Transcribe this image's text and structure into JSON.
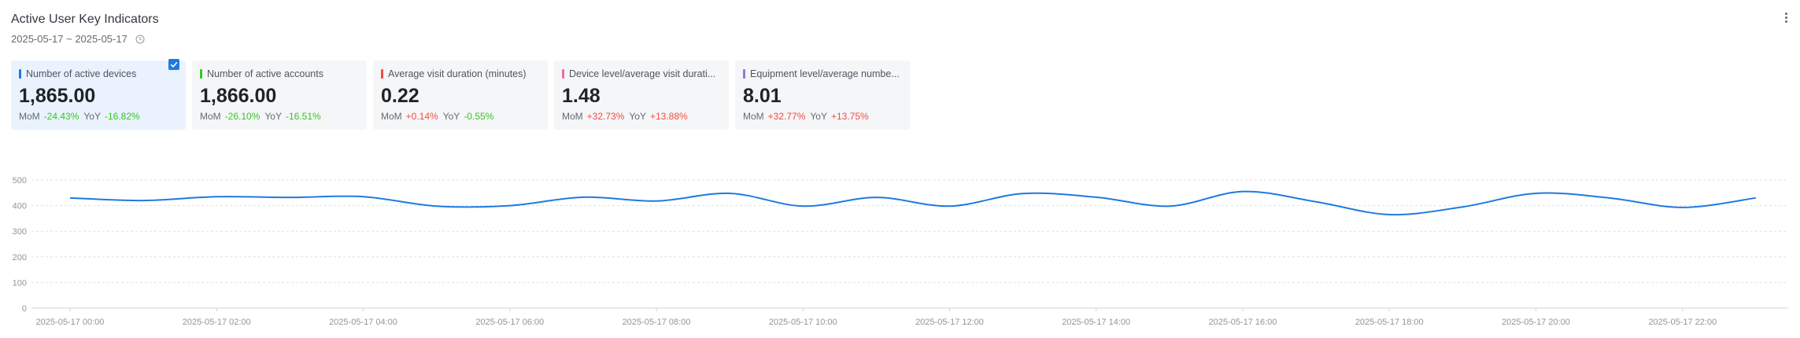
{
  "header": {
    "title": "Active User Key Indicators",
    "date_range": "2025-05-17 ~ 2025-05-17"
  },
  "colors": {
    "blue": "#1f7ae0",
    "green": "#34c724",
    "red": "#f54a45",
    "pink": "#f06d9a",
    "purple": "#8f7ad3"
  },
  "cards": [
    {
      "name": "Number of active devices",
      "value": "1,865.00",
      "mom_label": "MoM",
      "mom": "-24.43%",
      "yoy_label": "YoY",
      "yoy": "-16.82%",
      "color": "#1f7ae0",
      "mom_dir": "down",
      "yoy_dir": "down",
      "selected": true
    },
    {
      "name": "Number of active accounts",
      "value": "1,866.00",
      "mom_label": "MoM",
      "mom": "-26.10%",
      "yoy_label": "YoY",
      "yoy": "-16.51%",
      "color": "#34c724",
      "mom_dir": "down",
      "yoy_dir": "down",
      "selected": false
    },
    {
      "name": "Average visit duration (minutes)",
      "value": "0.22",
      "mom_label": "MoM",
      "mom": "+0.14%",
      "yoy_label": "YoY",
      "yoy": "-0.55%",
      "color": "#f54a45",
      "mom_dir": "up",
      "yoy_dir": "down",
      "selected": false
    },
    {
      "name": "Device level/average visit durati...",
      "value": "1.48",
      "mom_label": "MoM",
      "mom": "+32.73%",
      "yoy_label": "YoY",
      "yoy": "+13.88%",
      "color": "#f06d9a",
      "mom_dir": "up",
      "yoy_dir": "up",
      "selected": false
    },
    {
      "name": "Equipment level/average numbe...",
      "value": "8.01",
      "mom_label": "MoM",
      "mom": "+32.77%",
      "yoy_label": "YoY",
      "yoy": "+13.75%",
      "color": "#8f7ad3",
      "mom_dir": "up",
      "yoy_dir": "up",
      "selected": false
    }
  ],
  "chart_data": {
    "type": "line",
    "title": "",
    "xlabel": "",
    "ylabel": "",
    "ylim": [
      0,
      500
    ],
    "yticks": [
      0,
      100,
      200,
      300,
      400,
      500
    ],
    "grid": true,
    "x_tick_labels": [
      "2025-05-17 00:00",
      "2025-05-17 02:00",
      "2025-05-17 04:00",
      "2025-05-17 06:00",
      "2025-05-17 08:00",
      "2025-05-17 10:00",
      "2025-05-17 12:00",
      "2025-05-17 14:00",
      "2025-05-17 16:00",
      "2025-05-17 18:00",
      "2025-05-17 20:00",
      "2025-05-17 22:00"
    ],
    "series": [
      {
        "color": "#1f7ae0",
        "x": [
          "00:00",
          "01:00",
          "02:00",
          "03:00",
          "04:00",
          "05:00",
          "06:00",
          "07:00",
          "08:00",
          "09:00",
          "10:00",
          "11:00",
          "12:00",
          "13:00",
          "14:00",
          "15:00",
          "16:00",
          "17:00",
          "18:00",
          "19:00",
          "20:00",
          "21:00",
          "22:00",
          "23:00"
        ],
        "values": [
          430,
          420,
          435,
          432,
          435,
          398,
          400,
          433,
          418,
          448,
          398,
          432,
          398,
          447,
          433,
          398,
          455,
          415,
          365,
          395,
          448,
          430,
          393,
          430
        ]
      }
    ]
  }
}
